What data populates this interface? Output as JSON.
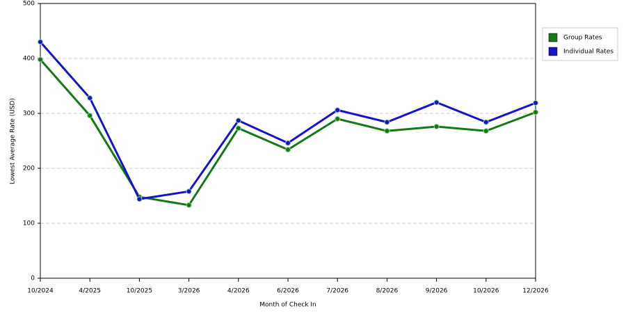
{
  "chart_data": {
    "type": "line",
    "x_label": "Month of Check In",
    "y_label": "Lowest Average Rate (USD)",
    "categories": [
      "10/2024",
      "4/2025",
      "10/2025",
      "3/2026",
      "4/2026",
      "6/2026",
      "7/2026",
      "8/2026",
      "9/2026",
      "10/2026",
      "12/2026"
    ],
    "series": [
      {
        "name": "Group Rates",
        "color": "#147814",
        "values": [
          398,
          296,
          148,
          133,
          273,
          234,
          290,
          268,
          276,
          268,
          302
        ]
      },
      {
        "name": "Individual Rates",
        "color": "#1414c8",
        "values": [
          430,
          328,
          144,
          158,
          287,
          246,
          306,
          284,
          320,
          284,
          319
        ]
      }
    ],
    "ylim": [
      0,
      500
    ],
    "yticks": [
      0,
      100,
      200,
      300,
      400,
      500
    ],
    "grid": true
  }
}
